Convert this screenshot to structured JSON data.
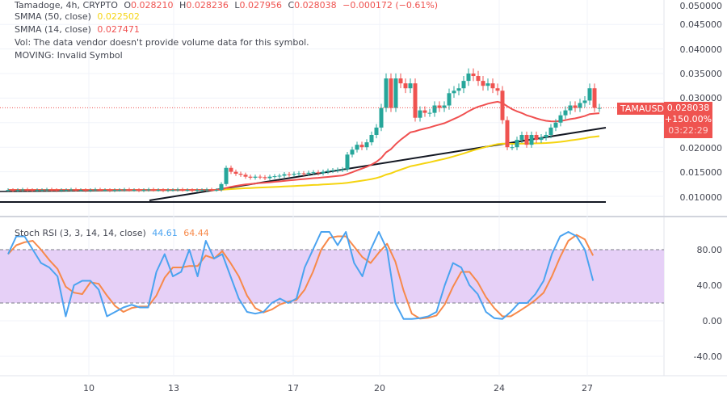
{
  "header": {
    "symbol_line": "Tamadoge, 4h, CRYPTO",
    "o_label": "O",
    "o": "0.028210",
    "h_label": "H",
    "h": "0.028236",
    "l_label": "L",
    "l": "0.027956",
    "c_label": "C",
    "c": "0.028038",
    "change": "−0.000172 (−0.61%)"
  },
  "indicators": [
    {
      "label": "SMMA (50, close)",
      "value": "0.022502",
      "color": "#f5d410"
    },
    {
      "label": "SMMA (14, close)",
      "value": "0.027471",
      "color": "#f05050"
    },
    {
      "label": "Vol: The data vendor doesn't provide volume data for this symbol."
    },
    {
      "label": "MOVING: Invalid Symbol"
    }
  ],
  "price_axis": [
    "0.050000",
    "0.045000",
    "0.040000",
    "0.035000",
    "0.030000",
    "0.020000",
    "0.015000",
    "0.010000"
  ],
  "price_tag": {
    "symbol": "TAMAUSD",
    "price": "0.028038",
    "change_pct": "+150.00%",
    "countdown": "03:22:29"
  },
  "stoch": {
    "label": "Stoch RSI (3, 3, 14, 14, close)",
    "k_value": "44.61",
    "d_value": "64.44",
    "k_color": "#4aa3f0",
    "d_color": "#f7894a",
    "band_color": "#e6d0f7",
    "axis": [
      "80.00",
      "40.00",
      "0.00",
      "-40.00"
    ]
  },
  "time_axis": [
    "10",
    "13",
    "17",
    "20",
    "24",
    "27"
  ],
  "colors": {
    "up": "#26a69a",
    "down": "#ef5350"
  },
  "chart_data": {
    "type": "candlestick",
    "flat_closes": [
      0.0113,
      0.0112,
      0.0113,
      0.0114,
      0.0113,
      0.0112,
      0.0113,
      0.0113,
      0.0114,
      0.0113,
      0.0112,
      0.0113,
      0.0113,
      0.0114,
      0.0113,
      0.0113,
      0.0112,
      0.0113,
      0.0114,
      0.0113,
      0.0113,
      0.0112,
      0.0113,
      0.0113,
      0.0114,
      0.0113,
      0.0113,
      0.0112,
      0.0113,
      0.0114,
      0.0113,
      0.0113,
      0.0112,
      0.0113,
      0.0113,
      0.0114,
      0.0113,
      0.0113,
      0.0112,
      0.0113,
      0.0113,
      0.0114,
      0.0113
    ],
    "closes": [
      0.0113,
      0.0125,
      0.0158,
      0.015,
      0.0146,
      0.0144,
      0.014,
      0.0138,
      0.014,
      0.0139,
      0.0137,
      0.014,
      0.0141,
      0.0142,
      0.0145,
      0.0144,
      0.0146,
      0.0147,
      0.0146,
      0.0148,
      0.0149,
      0.0147,
      0.015,
      0.0152,
      0.0153,
      0.0154,
      0.0155,
      0.0185,
      0.0195,
      0.0205,
      0.02,
      0.021,
      0.0225,
      0.024,
      0.028,
      0.034,
      0.028,
      0.034,
      0.033,
      0.032,
      0.033,
      0.026,
      0.0275,
      0.027,
      0.027,
      0.0285,
      0.028,
      0.0285,
      0.031,
      0.0315,
      0.032,
      0.0335,
      0.035,
      0.0345,
      0.0335,
      0.0325,
      0.033,
      0.032,
      0.0315,
      0.0255,
      0.02,
      0.02,
      0.0215,
      0.0225,
      0.0205,
      0.0225,
      0.0215,
      0.022,
      0.0225,
      0.024,
      0.025,
      0.0265,
      0.0275,
      0.0285,
      0.028,
      0.029,
      0.0295,
      0.032,
      0.028,
      0.028
    ],
    "stoch_k": [
      75,
      95,
      95,
      80,
      65,
      60,
      50,
      5,
      40,
      45,
      45,
      35,
      5,
      10,
      15,
      18,
      15,
      15,
      55,
      75,
      50,
      55,
      80,
      50,
      90,
      70,
      75,
      50,
      25,
      10,
      8,
      10,
      20,
      25,
      20,
      25,
      60,
      80,
      100,
      100,
      85,
      100,
      65,
      50,
      80,
      100,
      80,
      20,
      2,
      2,
      3,
      5,
      10,
      40,
      65,
      60,
      40,
      30,
      10,
      3,
      2,
      10,
      20,
      20,
      30,
      45,
      75,
      95,
      100,
      95,
      80,
      45
    ],
    "price_range": [
      0.008,
      0.05
    ],
    "stoch_range": [
      -55,
      105
    ]
  }
}
